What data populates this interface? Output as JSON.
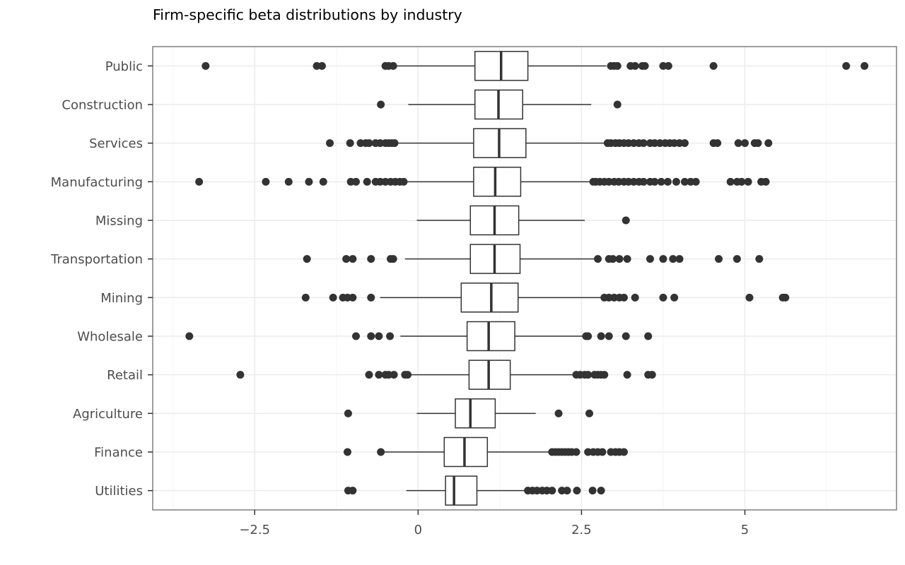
{
  "chart_data": {
    "type": "boxplot",
    "orientation": "horizontal",
    "title": "Firm-specific beta distributions by industry",
    "xlabel": "",
    "ylabel": "",
    "xlim": [
      -4.06,
      7.32
    ],
    "x_ticks": [
      -2.5,
      0,
      2.5,
      5
    ],
    "x_tick_labels": [
      "−2.5",
      "0",
      "2.5",
      "5"
    ],
    "x_minor_ticks": [
      -3.75,
      -1.25,
      1.25,
      3.75,
      6.25
    ],
    "grid": true,
    "legend": "none",
    "colors": {
      "box_stroke": "#333333",
      "box_fill": "#ffffff",
      "outlier": "#333333",
      "grid_major": "#ebebeb",
      "grid_minor": "#f5f5f5",
      "panel_border": "#7f7f7f",
      "tick_label": "#4d4d4d"
    },
    "categories": [
      "Public",
      "Construction",
      "Services",
      "Manufacturing",
      "Missing",
      "Transportation",
      "Mining",
      "Wholesale",
      "Retail",
      "Agriculture",
      "Finance",
      "Utilities"
    ],
    "boxes": [
      {
        "category": "Public",
        "whisker_low": -0.38,
        "q1": 0.87,
        "median": 1.27,
        "q3": 1.68,
        "whisker_high": 2.88,
        "outliers": [
          -3.25,
          -1.55,
          -1.47,
          -0.5,
          -0.45,
          -0.38,
          2.95,
          3.0,
          3.05,
          3.25,
          3.32,
          3.43,
          3.47,
          3.75,
          3.83,
          4.52,
          6.55,
          6.83
        ]
      },
      {
        "category": "Construction",
        "whisker_low": -0.15,
        "q1": 0.87,
        "median": 1.23,
        "q3": 1.6,
        "whisker_high": 2.65,
        "outliers": [
          -0.57,
          3.05
        ]
      },
      {
        "category": "Services",
        "whisker_low": -0.35,
        "q1": 0.85,
        "median": 1.24,
        "q3": 1.65,
        "whisker_high": 2.85,
        "outliers": [
          -1.35,
          -1.04,
          -0.88,
          -0.8,
          -0.75,
          -0.65,
          -0.58,
          -0.5,
          -0.45,
          -0.4,
          -0.36,
          2.9,
          2.95,
          3.02,
          3.08,
          3.15,
          3.22,
          3.3,
          3.38,
          3.45,
          3.55,
          3.62,
          3.7,
          3.78,
          3.85,
          3.92,
          4.0,
          4.08,
          4.52,
          4.58,
          4.9,
          5.0,
          5.15,
          5.2,
          5.36
        ]
      },
      {
        "category": "Manufacturing",
        "whisker_low": -0.18,
        "q1": 0.85,
        "median": 1.18,
        "q3": 1.57,
        "whisker_high": 2.65,
        "outliers": [
          -3.35,
          -2.33,
          -1.98,
          -1.67,
          -1.45,
          -1.03,
          -0.95,
          -0.78,
          -0.65,
          -0.58,
          -0.5,
          -0.42,
          -0.35,
          -0.28,
          -0.22,
          2.68,
          2.72,
          2.78,
          2.85,
          2.92,
          3.0,
          3.07,
          3.15,
          3.22,
          3.3,
          3.38,
          3.45,
          3.55,
          3.62,
          3.72,
          3.82,
          3.95,
          4.08,
          4.17,
          4.25,
          4.78,
          4.88,
          4.95,
          5.05,
          5.25,
          5.32
        ]
      },
      {
        "category": "Missing",
        "whisker_low": -0.02,
        "q1": 0.8,
        "median": 1.17,
        "q3": 1.54,
        "whisker_high": 2.55,
        "outliers": [
          3.18
        ]
      },
      {
        "category": "Transportation",
        "whisker_low": -0.2,
        "q1": 0.8,
        "median": 1.17,
        "q3": 1.56,
        "whisker_high": 2.72,
        "outliers": [
          -1.7,
          -1.1,
          -1.0,
          -0.72,
          -0.42,
          -0.38,
          2.75,
          2.92,
          2.98,
          3.08,
          3.2,
          3.55,
          3.75,
          3.9,
          4.0,
          4.6,
          4.88,
          5.22
        ]
      },
      {
        "category": "Mining",
        "whisker_low": -0.58,
        "q1": 0.66,
        "median": 1.12,
        "q3": 1.53,
        "whisker_high": 2.82,
        "outliers": [
          -1.72,
          -1.3,
          -1.15,
          -1.08,
          -1.0,
          -0.72,
          2.85,
          2.92,
          3.0,
          3.08,
          3.15,
          3.32,
          3.75,
          3.92,
          5.07,
          5.58,
          5.62
        ]
      },
      {
        "category": "Wholesale",
        "whisker_low": -0.27,
        "q1": 0.75,
        "median": 1.08,
        "q3": 1.48,
        "whisker_high": 2.55,
        "outliers": [
          -3.5,
          -0.95,
          -0.72,
          -0.6,
          -0.43,
          2.57,
          2.6,
          2.8,
          2.92,
          3.18,
          3.52
        ]
      },
      {
        "category": "Retail",
        "whisker_low": -0.17,
        "q1": 0.78,
        "median": 1.08,
        "q3": 1.41,
        "whisker_high": 2.4,
        "outliers": [
          -2.72,
          -0.75,
          -0.6,
          -0.5,
          -0.45,
          -0.37,
          -0.2,
          -0.16,
          2.42,
          2.48,
          2.55,
          2.6,
          2.7,
          2.75,
          2.8,
          2.85,
          3.2,
          3.52,
          3.58
        ]
      },
      {
        "category": "Agriculture",
        "whisker_low": -0.02,
        "q1": 0.57,
        "median": 0.8,
        "q3": 1.18,
        "whisker_high": 1.8,
        "outliers": [
          -1.07,
          2.15,
          2.62
        ]
      },
      {
        "category": "Finance",
        "whisker_low": -0.55,
        "q1": 0.4,
        "median": 0.71,
        "q3": 1.06,
        "whisker_high": 2.02,
        "outliers": [
          -1.08,
          -0.57,
          2.05,
          2.1,
          2.15,
          2.2,
          2.25,
          2.3,
          2.35,
          2.42,
          2.6,
          2.68,
          2.75,
          2.82,
          2.95,
          3.02,
          3.08,
          3.15
        ]
      },
      {
        "category": "Utilities",
        "whisker_low": -0.18,
        "q1": 0.42,
        "median": 0.55,
        "q3": 0.9,
        "whisker_high": 1.65,
        "outliers": [
          -1.07,
          -1.0,
          1.68,
          1.75,
          1.82,
          1.9,
          1.97,
          2.05,
          2.2,
          2.28,
          2.43,
          2.67,
          2.8
        ]
      }
    ]
  }
}
